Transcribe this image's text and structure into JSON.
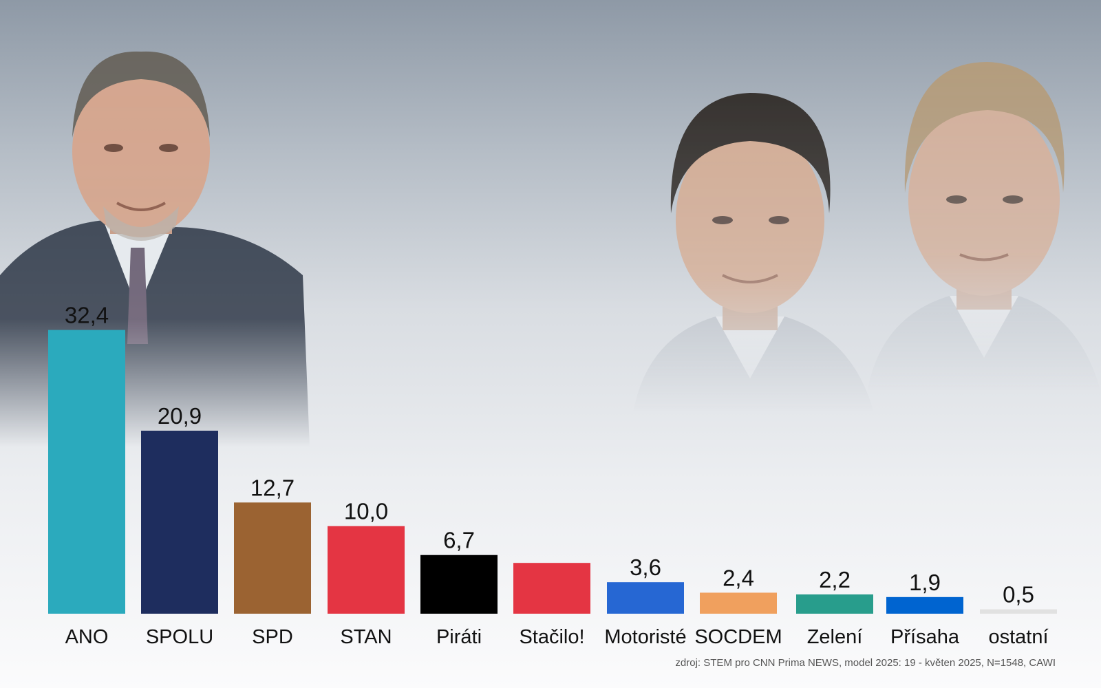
{
  "colors": {
    "ANO": "#2baabd",
    "SPOLU": "#1e2d5e",
    "SPD": "#9b6332",
    "STAN": "#e43543",
    "Piráti": "#000000",
    "Stačilo!": "#e43543",
    "Motoristé": "#2667d3",
    "SOCDEM": "#f0a05e",
    "Zelení": "#289d8c",
    "Přísaha": "#0064d0",
    "ostatní": "#e1e1e1"
  },
  "chart_data": {
    "type": "bar",
    "categories": [
      "ANO",
      "SPOLU",
      "SPD",
      "STAN",
      "Piráti",
      "Stačilo!",
      "Motoristé",
      "SOCDEM",
      "Zelení",
      "Přísaha",
      "ostatní"
    ],
    "values": [
      32.4,
      20.9,
      12.7,
      10.0,
      6.7,
      5.8,
      3.6,
      2.4,
      2.2,
      1.9,
      0.5
    ],
    "value_labels": [
      "32,4",
      "20,9",
      "12,7",
      "10,0",
      "6,7",
      "",
      "3,6",
      "2,4",
      "2,2",
      "1,9",
      "0,5"
    ],
    "title": "",
    "xlabel": "",
    "ylabel": "",
    "ylim": [
      0,
      33
    ],
    "grid": false,
    "legend": "none"
  },
  "source": "zdroj: STEM pro CNN Prima NEWS, model 2025: 19 - květen 2025, N=1548, CAWI",
  "images": {
    "left_portrait": "portrait-man-grey-suit",
    "right_portrait_1": "portrait-man-dark-hair",
    "right_portrait_2": "portrait-man-blond-hair"
  }
}
